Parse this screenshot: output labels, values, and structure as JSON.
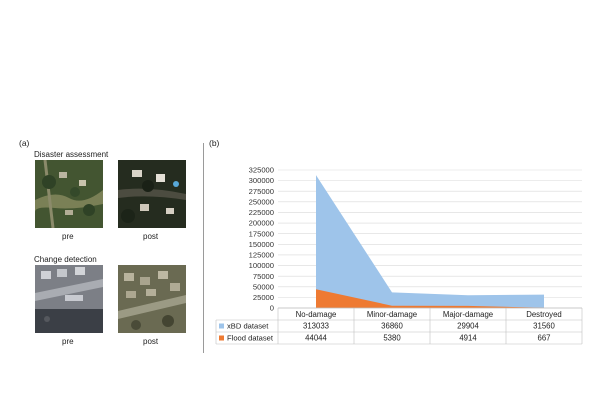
{
  "panel_a": {
    "label": "(a)",
    "section1_title": "Disaster assessment",
    "section2_title": "Change detection",
    "caption_pre_1": "pre",
    "caption_post_1": "post",
    "caption_pre_2": "pre",
    "caption_post_2": "post"
  },
  "panel_b": {
    "label": "(b)"
  },
  "colors": {
    "xbd": "#9ec4ea",
    "flood": "#ee7a32",
    "grid": "#d9d9d9",
    "table_border": "#bfbfbf"
  },
  "chart_data": {
    "type": "area",
    "categories": [
      "No-damage",
      "Minor-damage",
      "Major-damage",
      "Destroyed"
    ],
    "series": [
      {
        "name": "xBD dataset",
        "values": [
          313033,
          36860,
          29904,
          31560
        ]
      },
      {
        "name": "Flood dataset",
        "values": [
          44044,
          5380,
          4914,
          667
        ]
      }
    ],
    "y_ticks": [
      0,
      25000,
      50000,
      75000,
      100000,
      125000,
      150000,
      175000,
      200000,
      225000,
      250000,
      275000,
      300000,
      325000
    ],
    "ylim": [
      0,
      325000
    ],
    "grid": true,
    "legend": "data-table-below"
  }
}
